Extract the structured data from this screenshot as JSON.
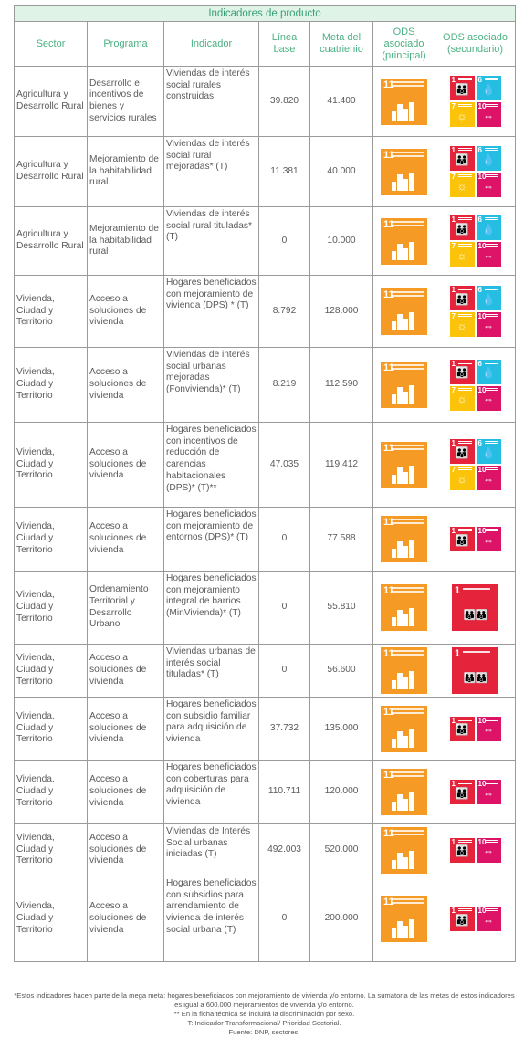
{
  "table_title": "Indicadores de producto",
  "headers": {
    "sector": "Sector",
    "programa": "Programa",
    "indicador": "Indicador",
    "linea_base": "Línea base",
    "meta": "Meta del cuatrienio",
    "ods_principal": "ODS asociado (principal)",
    "ods_secundario": "ODS asociado (secundario)"
  },
  "rows": [
    {
      "sector": "Agricultura y Desarrollo Rural",
      "programa": "Desarrollo e incentivos de bienes y servicios rurales",
      "indicador": "Viviendas de interés social rurales construidas",
      "linea_base": "39.820",
      "meta": "41.400",
      "ods_principal": "11",
      "ods_secundario": [
        "1",
        "6",
        "7",
        "10"
      ]
    },
    {
      "sector": "Agricultura y Desarrollo Rural",
      "programa": "Mejoramiento de la habitabilidad rural",
      "indicador": "Viviendas de interés social rural mejoradas* (T)",
      "linea_base": "11.381",
      "meta": "40.000",
      "ods_principal": "11",
      "ods_secundario": [
        "1",
        "6",
        "7",
        "10"
      ]
    },
    {
      "sector": "Agricultura y Desarrollo Rural",
      "programa": "Mejoramiento de la habitabilidad rural",
      "indicador": "Viviendas de interés social rural tituladas* (T)",
      "linea_base": "0",
      "meta": "10.000",
      "ods_principal": "11",
      "ods_secundario": [
        "1",
        "6",
        "7",
        "10"
      ]
    },
    {
      "sector": "Vivienda, Ciudad y Territorio",
      "programa": "Acceso a soluciones de vivienda",
      "indicador": "Hogares beneficiados con mejoramiento de vivienda (DPS) * (T)",
      "linea_base": "8.792",
      "meta": "128.000",
      "ods_principal": "11",
      "ods_secundario": [
        "1",
        "6",
        "7",
        "10"
      ]
    },
    {
      "sector": "Vivienda, Ciudad y Territorio",
      "programa": "Acceso a soluciones de vivienda",
      "indicador": "Viviendas de interés social urbanas mejoradas (Fonvivienda)* (T)",
      "linea_base": "8.219",
      "meta": "112.590",
      "ods_principal": "11",
      "ods_secundario": [
        "1",
        "6",
        "7",
        "10"
      ]
    },
    {
      "sector": "Vivienda, Ciudad y Territorio",
      "programa": "Acceso a soluciones de vivienda",
      "indicador": "Hogares beneficiados con incentivos de reducción de carencias habitacionales (DPS)* (T)**",
      "linea_base": "47.035",
      "meta": "119.412",
      "ods_principal": "11",
      "ods_secundario": [
        "1",
        "6",
        "7",
        "10"
      ]
    },
    {
      "sector": "Vivienda, Ciudad y Territorio",
      "programa": "Acceso a soluciones de vivienda",
      "indicador": "Hogares beneficiados con mejoramiento de entornos (DPS)* (T)",
      "linea_base": "0",
      "meta": "77.588",
      "ods_principal": "11",
      "ods_secundario": [
        "1",
        "10"
      ]
    },
    {
      "sector": "Vivienda, Ciudad y Territorio",
      "programa": "Ordenamiento Territorial y Desarrollo Urbano",
      "indicador": "Hogares beneficiados con mejoramiento integral de barrios (MinVivienda)* (T)",
      "linea_base": "0",
      "meta": "55.810",
      "ods_principal": "11",
      "ods_secundario": [
        "1"
      ]
    },
    {
      "sector": "Vivienda, Ciudad y Territorio",
      "programa": "Acceso a soluciones de vivienda",
      "indicador": "Viviendas urbanas de interés social tituladas* (T)",
      "linea_base": "0",
      "meta": "56.600",
      "ods_principal": "11",
      "ods_secundario": [
        "1"
      ]
    },
    {
      "sector": "Vivienda, Ciudad y Territorio",
      "programa": "Acceso a soluciones de vivienda",
      "indicador": "Hogares beneficiados con subsidio familiar para adquisición de vivienda",
      "linea_base": "37.732",
      "meta": "135.000",
      "ods_principal": "11",
      "ods_secundario": [
        "1",
        "10"
      ]
    },
    {
      "sector": "Vivienda, Ciudad y Territorio",
      "programa": "Acceso a soluciones de vivienda",
      "indicador": "Hogares beneficiados con coberturas para adquisición de vivienda",
      "linea_base": "110.711",
      "meta": "120.000",
      "ods_principal": "11",
      "ods_secundario": [
        "1",
        "10"
      ]
    },
    {
      "sector": "Vivienda, Ciudad y Territorio",
      "programa": "Acceso a soluciones de vivienda",
      "indicador": "Viviendas de Interés Social urbanas iniciadas (T)",
      "linea_base": "492.003",
      "meta": "520.000",
      "ods_principal": "11",
      "ods_secundario": [
        "1",
        "10"
      ]
    },
    {
      "sector": "Vivienda, Ciudad y Territorio",
      "programa": "Acceso a soluciones de vivienda",
      "indicador": "Hogares beneficiados con subsidios para arrendamiento de vivienda de interés social urbana (T)",
      "linea_base": "0",
      "meta": "200.000",
      "ods_principal": "11",
      "ods_secundario": [
        "1",
        "10"
      ]
    }
  ],
  "notes": {
    "line1": "*Estos indicadores hacen parte de la mega meta: hogares beneficiados con mejoramiento de vivienda y/o entorno. La sumatoria de las metas de estos indicadores es igual a 600.000 mejoramientos de vivienda y/o entorno.",
    "line2": "** En la ficha técnica se incluirá la discriminación por sexo.",
    "line3": "T: Indicador Transformacional/ Prioridad Sectorial.",
    "line4": "Fuente: DNP, sectores."
  },
  "colors": {
    "header_text": "#4cb083",
    "title_bg": "#dff3e6",
    "sdg1": "#e5243b",
    "sdg6": "#26bde2",
    "sdg7": "#fcc30b",
    "sdg10": "#dd1367",
    "sdg11": "#f59b25"
  },
  "icons": {
    "sdg1": "family-icon",
    "sdg6": "water-drop-icon",
    "sdg7": "sun-icon",
    "sdg10": "equality-icon",
    "sdg11": "city-buildings-icon"
  }
}
